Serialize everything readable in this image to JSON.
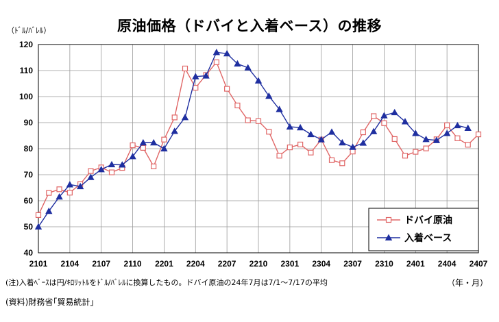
{
  "chart_data": {
    "type": "line",
    "title": "原油価格（ドバイと入着ベース）の推移",
    "ylabel": "（ﾄﾞﾙ/ﾊﾞﾚﾙ）",
    "xlabel": "（年・月）",
    "ylim": [
      40,
      120
    ],
    "yticks": [
      "40",
      "50",
      "60",
      "70",
      "80",
      "90",
      "100",
      "110",
      "120"
    ],
    "xticks": [
      "2101",
      "2104",
      "2107",
      "2110",
      "2201",
      "2204",
      "2207",
      "2210",
      "2301",
      "2304",
      "2307",
      "2310",
      "2401",
      "2404",
      "2407"
    ],
    "grid": true,
    "legend_position": "bottom-right",
    "months": [
      "2101",
      "2102",
      "2103",
      "2104",
      "2105",
      "2106",
      "2107",
      "2108",
      "2109",
      "2110",
      "2111",
      "2112",
      "2201",
      "2202",
      "2203",
      "2204",
      "2205",
      "2206",
      "2207",
      "2208",
      "2209",
      "2210",
      "2211",
      "2212",
      "2301",
      "2302",
      "2303",
      "2304",
      "2305",
      "2306",
      "2307",
      "2308",
      "2309",
      "2310",
      "2311",
      "2312",
      "2401",
      "2402",
      "2403",
      "2404",
      "2405",
      "2406",
      "2407"
    ],
    "series": [
      {
        "name": "ドバイ原油",
        "color": "#e06666",
        "marker": "square",
        "values": [
          54.5,
          63.0,
          64.4,
          63.1,
          66.4,
          71.4,
          72.8,
          70.9,
          72.6,
          81.3,
          80.3,
          73.2,
          83.5,
          92.0,
          110.8,
          103.4,
          108.3,
          113.2,
          103.0,
          96.6,
          90.9,
          90.6,
          86.5,
          77.3,
          80.5,
          81.6,
          78.5,
          83.5,
          75.6,
          74.4,
          78.9,
          86.3,
          92.5,
          89.8,
          83.7,
          77.3,
          78.8,
          80.1,
          83.6,
          89.0,
          84.0,
          81.5,
          85.5
        ]
      },
      {
        "name": "入着ベース",
        "color": "#1f2fa0",
        "marker": "triangle",
        "values": [
          50.0,
          56.0,
          61.5,
          66.2,
          65.5,
          69.0,
          72.0,
          73.9,
          73.8,
          77.0,
          82.3,
          82.3,
          80.0,
          86.7,
          92.0,
          107.7,
          108.0,
          117.0,
          116.5,
          112.6,
          111.1,
          106.1,
          100.2,
          95.1,
          88.4,
          88.1,
          85.5,
          83.5,
          86.4,
          82.3,
          80.6,
          82.2,
          86.6,
          92.7,
          93.9,
          90.4,
          85.9,
          83.6,
          83.2,
          85.9,
          88.9,
          87.9
        ]
      }
    ]
  },
  "notes": {
    "footnote": "(注)入着ﾍﾞｰｽは円/ｷﾛﾘｯﾄﾙをﾄﾞﾙ/ﾊﾞﾚﾙに換算したもの。ドバイ原油の24年7月は7/1～7/17の平均",
    "source": "(資料)財務省｢貿易統計｣"
  }
}
